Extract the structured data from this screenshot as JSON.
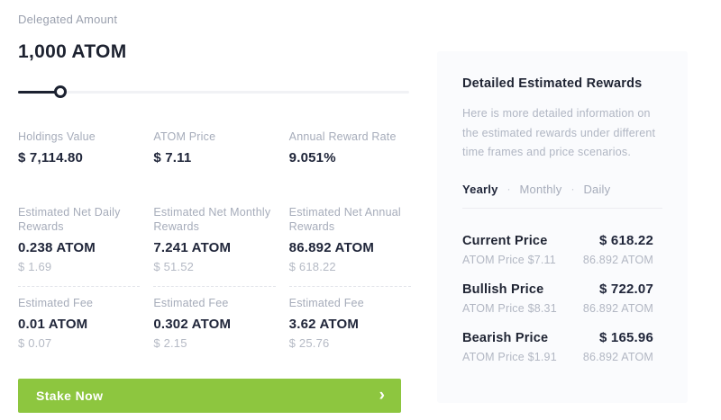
{
  "colors": {
    "accent_green": "#8dc63f",
    "panel_background": "#fafbfd",
    "text_dark": "#20263a",
    "text_gray": "#a6acba"
  },
  "delegation": {
    "label": "Delegated Amount",
    "amount": "1,000 ATOM",
    "slider_position_percent": 10
  },
  "stats": {
    "row1": [
      {
        "label": "Holdings Value",
        "value": "$ 7,114.80"
      },
      {
        "label": "ATOM Price",
        "value": "$ 7.11"
      },
      {
        "label": "Annual Reward Rate",
        "value": "9.051%"
      }
    ],
    "rewards": [
      {
        "label": "Estimated Net Daily Rewards",
        "value": "0.238 ATOM",
        "usd": "$ 1.69"
      },
      {
        "label": "Estimated Net Monthly Rewards",
        "value": "7.241 ATOM",
        "usd": "$ 51.52"
      },
      {
        "label": "Estimated Net Annual Rewards",
        "value": "86.892 ATOM",
        "usd": "$ 618.22"
      }
    ],
    "fees": [
      {
        "label": "Estimated Fee",
        "value": "0.01 ATOM",
        "usd": "$ 0.07"
      },
      {
        "label": "Estimated Fee",
        "value": "0.302 ATOM",
        "usd": "$ 2.15"
      },
      {
        "label": "Estimated Fee",
        "value": "3.62 ATOM",
        "usd": "$ 25.76"
      }
    ]
  },
  "stake_button": {
    "label": "Stake Now",
    "chevron": "›"
  },
  "panel": {
    "title": "Detailed Estimated Rewards",
    "description": "Here is more detailed information on the estimated rewards under different time frames and price scenarios.",
    "tab_separator": "·",
    "tabs": [
      {
        "label": "Yearly",
        "active": true
      },
      {
        "label": "Monthly",
        "active": false
      },
      {
        "label": "Daily",
        "active": false
      }
    ],
    "scenarios": [
      {
        "name": "Current Price",
        "total": "$ 618.22",
        "atom_price": "ATOM Price $7.11",
        "atom_amount": "86.892 ATOM"
      },
      {
        "name": "Bullish Price",
        "total": "$ 722.07",
        "atom_price": "ATOM Price $8.31",
        "atom_amount": "86.892 ATOM"
      },
      {
        "name": "Bearish Price",
        "total": "$ 165.96",
        "atom_price": "ATOM Price $1.91",
        "atom_amount": "86.892 ATOM"
      }
    ]
  }
}
